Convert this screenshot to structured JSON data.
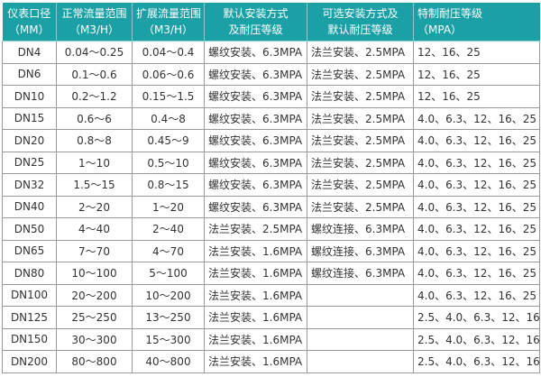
{
  "header_color": "#1ba0a6",
  "columns": [
    {
      "line1": "仪表口径",
      "line2": "（MM）"
    },
    {
      "line1": "正常流量范围",
      "line2": "（M3/H）"
    },
    {
      "line1": "扩展流量范围",
      "line2": "（M3/H）"
    },
    {
      "line1": "默认安装方式",
      "line2": "及耐压等级"
    },
    {
      "line1": "可选安装方式及",
      "line2": "默认耐压等级"
    },
    {
      "line1": "特制耐压等级",
      "line2": "（MPA）"
    }
  ],
  "rows": [
    [
      "DN4",
      "0.04～0.25",
      "0.04～0.4",
      "螺纹安装、6.3MPA",
      "法兰安装、2.5MPA",
      "12、16、25"
    ],
    [
      "DN6",
      "0.1～0.6",
      "0.06～0.6",
      "螺纹安装、6.3MPA",
      "法兰安装、2.5MPA",
      "12、16、25"
    ],
    [
      "DN10",
      "0.2～1.2",
      "0.15～1.5",
      "螺纹安装、6.3MPA",
      "法兰安装、2.5MPA",
      "12、16、25"
    ],
    [
      "DN15",
      "0.6～6",
      "0.4～8",
      "螺纹安装、6.3MPA",
      "法兰安装、2.5MPA",
      "4.0、6.3、12、16、25"
    ],
    [
      "DN20",
      "0.8～8",
      "0.45～9",
      "螺纹安装、6.3MPA",
      "法兰安装、2.5MPA",
      "4.0、6.3、12、16、25"
    ],
    [
      "DN25",
      "1～10",
      "0.5～10",
      "螺纹安装、6.3MPA",
      "法兰安装、2.5MPA",
      "4.0、6.3、12、16、25"
    ],
    [
      "DN32",
      "1.5～15",
      "0.8～15",
      "螺纹安装、6.3MPA",
      "法兰安装、2.5MPA",
      "4.0、6.3、12、16、25"
    ],
    [
      "DN40",
      "2～20",
      "1～20",
      "螺纹安装、6.3MPA",
      "法兰安装、2.5MPA",
      "4.0、6.3、12、16、25"
    ],
    [
      "DN50",
      "4～40",
      "2～40",
      "法兰安装、2.5MPA",
      "螺纹连接、6.3MPA",
      "4.0、6.3、12、16、25"
    ],
    [
      "DN65",
      "7～70",
      "4～70",
      "法兰安装、1.6MPA",
      "螺纹连接、6.3MPA",
      "4.0、6.3、12、16、25"
    ],
    [
      "DN80",
      "10～100",
      "5～100",
      "法兰安装、1.6MPA",
      "螺纹连接、6.3MPA",
      "4.0、6.3、12、16、25"
    ],
    [
      "DN100",
      "20～200",
      "10～200",
      "法兰安装、1.6MPA",
      "",
      "4.0、6.3、12、16、25"
    ],
    [
      "DN125",
      "25～250",
      "13～250",
      "法兰安装、1.6MPA",
      "",
      "2.5、4.0、6.3、12、16"
    ],
    [
      "DN150",
      "30～300",
      "15～300",
      "法兰安装、1.6MPA",
      "",
      "2.5、4.0、6.3、12、16"
    ],
    [
      "DN200",
      "80～800",
      "40～800",
      "法兰安装、1.6MPA",
      "",
      "2.5、4.0、6.3、12、16"
    ]
  ]
}
